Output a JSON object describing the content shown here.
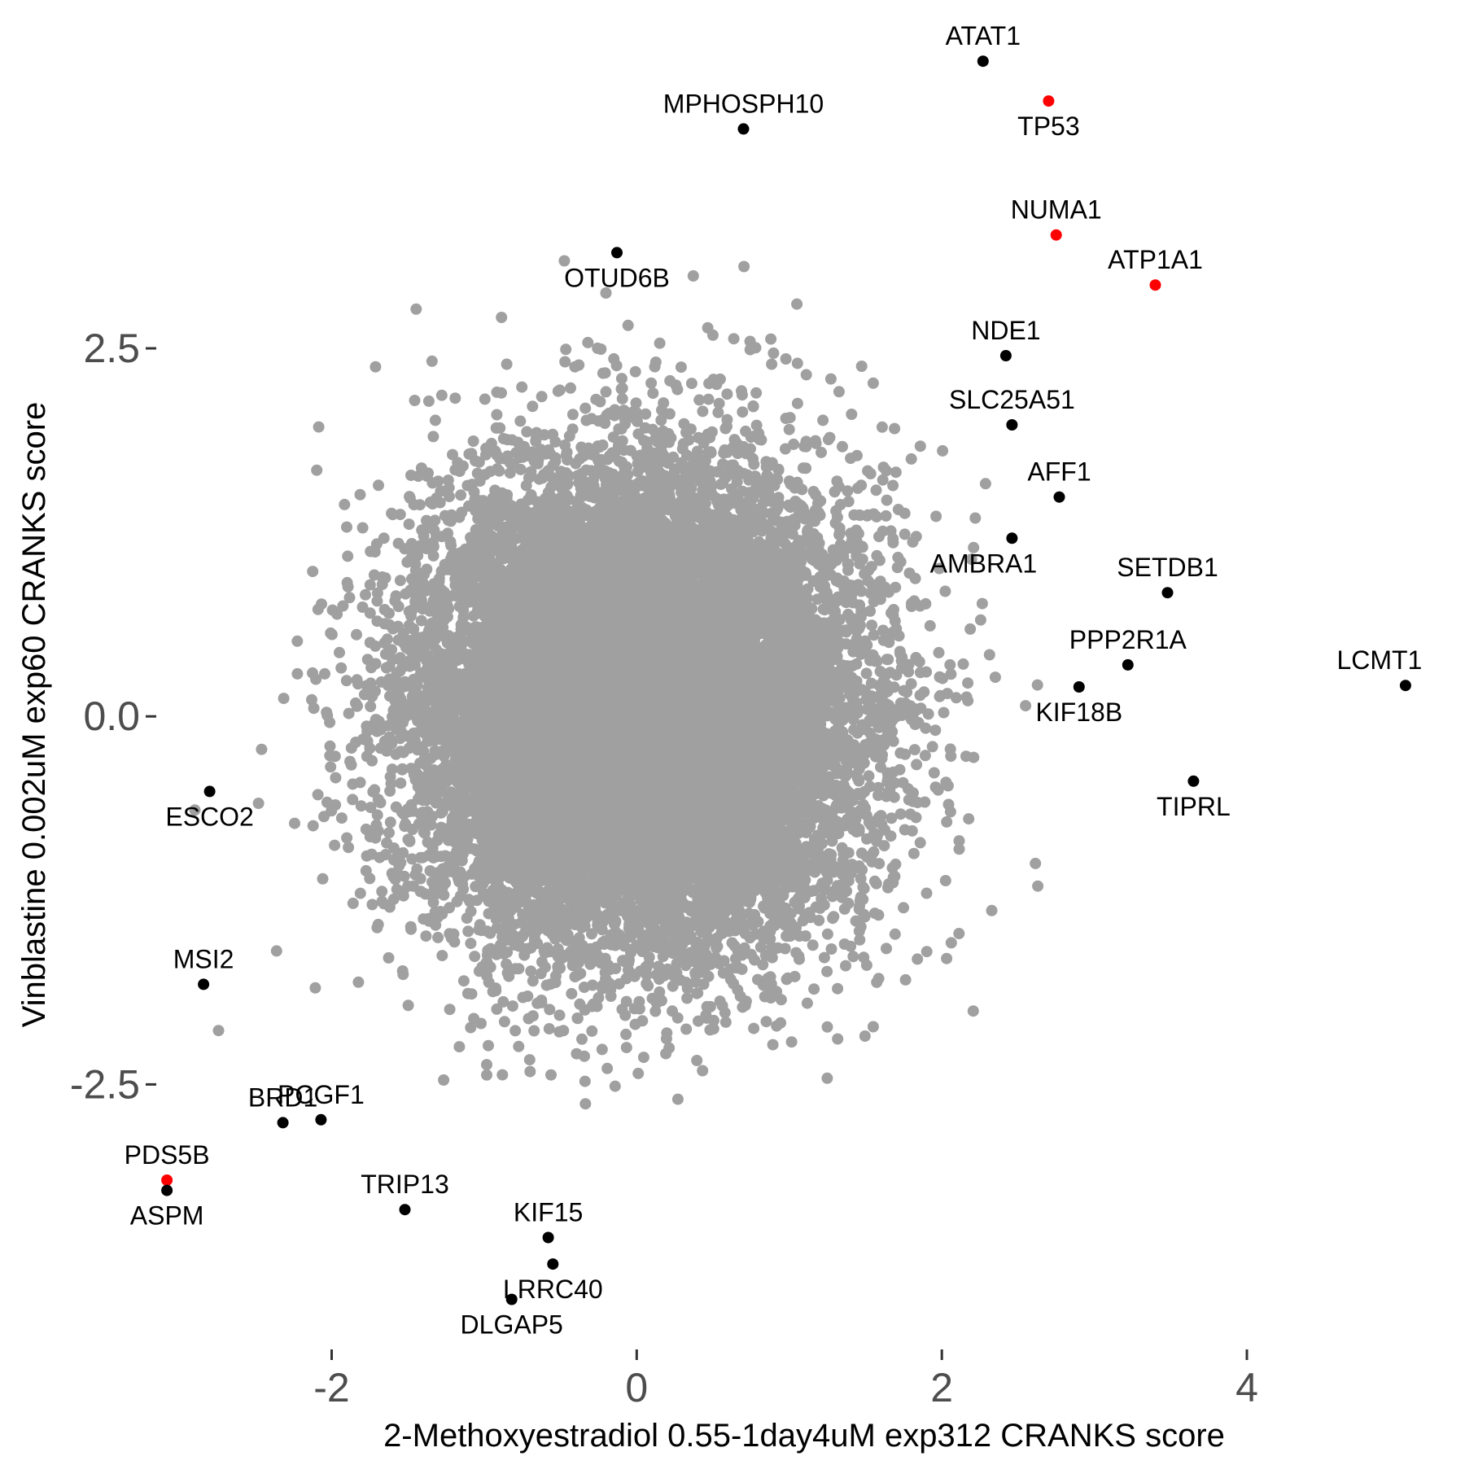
{
  "chart_data": {
    "type": "scatter",
    "title": "",
    "xlabel": "2-Methoxyestradiol 0.55-1day4uM exp312 CRANKS score",
    "ylabel": "Vinblastine 0.002uM exp60 CRANKS score",
    "xlim": [
      -3.15,
      5.35
    ],
    "ylim": [
      -4.3,
      4.7
    ],
    "xticks": [
      -2,
      0,
      2,
      4
    ],
    "xtick_labels": [
      "-2",
      "0",
      "2",
      "4"
    ],
    "yticks": [
      -2.5,
      0.0,
      2.5
    ],
    "ytick_labels": [
      "-2.5",
      "0.0",
      "2.5"
    ],
    "grid": false,
    "legend": "none",
    "background_color": "#ffffff",
    "background_point_color": "#a0a0a0",
    "background_point_count": 18000,
    "highlight_colors": {
      "black": "#000000",
      "red": "#ff0000"
    },
    "labeled_points": [
      {
        "label": "ATAT1",
        "x": 2.27,
        "y": 4.45,
        "color": "black",
        "label_pos": "above"
      },
      {
        "label": "TP53",
        "x": 2.7,
        "y": 4.18,
        "color": "red",
        "label_pos": "below"
      },
      {
        "label": "MPHOSPH10",
        "x": 0.7,
        "y": 3.99,
        "color": "black",
        "label_pos": "above"
      },
      {
        "label": "NUMA1",
        "x": 2.75,
        "y": 3.27,
        "color": "red",
        "label_pos": "above"
      },
      {
        "label": "OTUD6B",
        "x": -0.13,
        "y": 3.15,
        "color": "black",
        "label_pos": "below"
      },
      {
        "label": "ATP1A1",
        "x": 3.4,
        "y": 2.93,
        "color": "red",
        "label_pos": "above"
      },
      {
        "label": "NDE1",
        "x": 2.42,
        "y": 2.45,
        "color": "black",
        "label_pos": "above"
      },
      {
        "label": "SLC25A51",
        "x": 2.46,
        "y": 1.98,
        "color": "black",
        "label_pos": "above"
      },
      {
        "label": "AFF1",
        "x": 2.77,
        "y": 1.49,
        "color": "black",
        "label_pos": "above"
      },
      {
        "label": "AMBRA1",
        "x": 2.46,
        "y": 1.21,
        "color": "black",
        "label_pos": "below-left"
      },
      {
        "label": "SETDB1",
        "x": 3.48,
        "y": 0.84,
        "color": "black",
        "label_pos": "above"
      },
      {
        "label": "PPP2R1A",
        "x": 3.22,
        "y": 0.35,
        "color": "black",
        "label_pos": "above"
      },
      {
        "label": "LCMT1",
        "x": 5.04,
        "y": 0.21,
        "color": "black",
        "label_pos": "above-left"
      },
      {
        "label": "KIF18B",
        "x": 2.9,
        "y": 0.2,
        "color": "black",
        "label_pos": "below"
      },
      {
        "label": "TIPRL",
        "x": 3.65,
        "y": -0.44,
        "color": "black",
        "label_pos": "below"
      },
      {
        "label": "ESCO2",
        "x": -2.8,
        "y": -0.51,
        "color": "black",
        "label_pos": "below"
      },
      {
        "label": "MSI2",
        "x": -2.84,
        "y": -1.82,
        "color": "black",
        "label_pos": "above"
      },
      {
        "label": "BRD1",
        "x": -2.32,
        "y": -2.76,
        "color": "black",
        "label_pos": "above"
      },
      {
        "label": "PCGF1",
        "x": -2.07,
        "y": -2.74,
        "color": "black",
        "label_pos": "above"
      },
      {
        "label": "PDS5B",
        "x": -3.08,
        "y": -3.15,
        "color": "red",
        "label_pos": "above"
      },
      {
        "label": "ASPM",
        "x": -3.08,
        "y": -3.22,
        "color": "black",
        "label_pos": "below"
      },
      {
        "label": "TRIP13",
        "x": -1.52,
        "y": -3.35,
        "color": "black",
        "label_pos": "above"
      },
      {
        "label": "KIF15",
        "x": -0.58,
        "y": -3.54,
        "color": "black",
        "label_pos": "above"
      },
      {
        "label": "LRRC40",
        "x": -0.55,
        "y": -3.72,
        "color": "black",
        "label_pos": "below"
      },
      {
        "label": "DLGAP5",
        "x": -0.82,
        "y": -3.96,
        "color": "black",
        "label_pos": "below"
      }
    ]
  }
}
